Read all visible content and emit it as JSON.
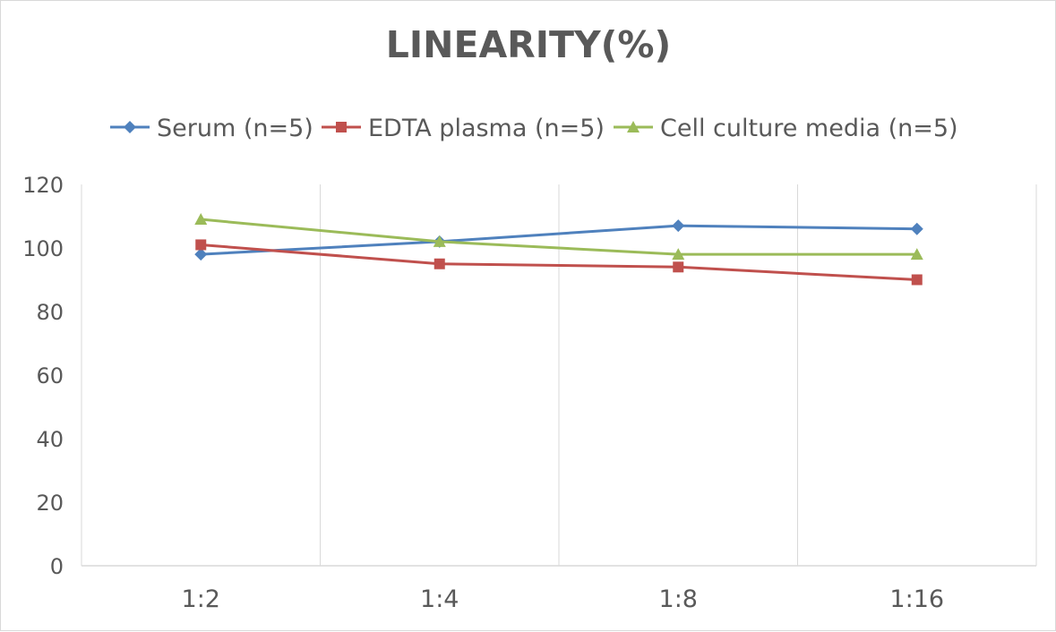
{
  "chart_data": {
    "type": "line",
    "title": "LINEARITY(%)",
    "xlabel": "",
    "ylabel": "",
    "categories": [
      "1:2",
      "1:4",
      "1:8",
      "1:16"
    ],
    "ylim": [
      0,
      120
    ],
    "yticks": [
      "0",
      "20",
      "40",
      "60",
      "80",
      "100",
      "120"
    ],
    "grid": "vertical",
    "legend_position": "top",
    "series": [
      {
        "name": "Serum (n=5)",
        "values": [
          98,
          102,
          107,
          106
        ],
        "color": "#4f81bd",
        "marker": "diamond"
      },
      {
        "name": "EDTA plasma (n=5)",
        "values": [
          101,
          95,
          94,
          90
        ],
        "color": "#c0504d",
        "marker": "square"
      },
      {
        "name": "Cell culture media (n=5)",
        "values": [
          109,
          102,
          98,
          98
        ],
        "color": "#9bbb59",
        "marker": "triangle"
      }
    ]
  }
}
